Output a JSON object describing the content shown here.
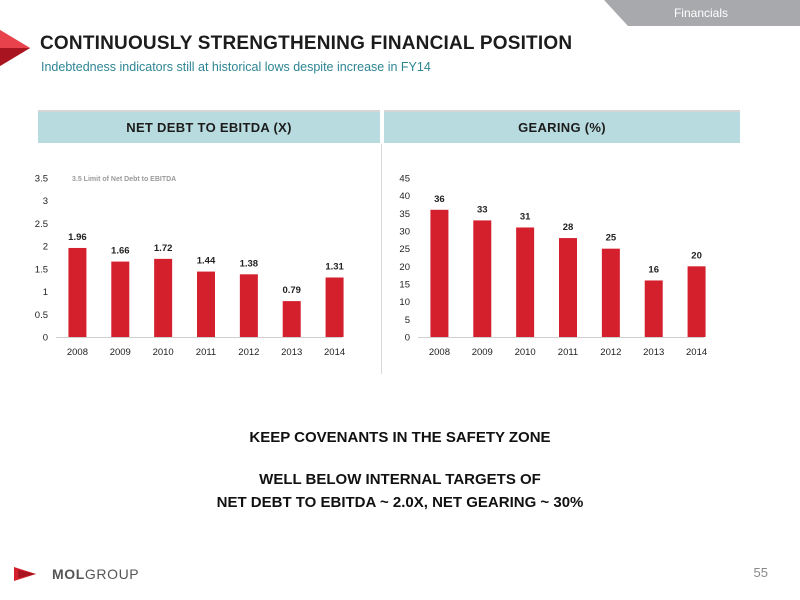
{
  "header": {
    "section_tab": "Financials",
    "title": "CONTINUOUSLY STRENGTHENING FINANCIAL POSITION",
    "subtitle": "Indebtedness indicators still at historical lows despite increase in FY14"
  },
  "colors": {
    "bar": "#d4202d",
    "panel_header": "#b8dbdf",
    "subtitle": "#2d8593",
    "brand_red": "#d4202d"
  },
  "chart_data": [
    {
      "type": "bar",
      "title": "NET DEBT TO EBITDA (X)",
      "categories": [
        "2008",
        "2009",
        "2010",
        "2011",
        "2012",
        "2013",
        "2014"
      ],
      "values": [
        1.96,
        1.66,
        1.72,
        1.44,
        1.38,
        0.79,
        1.31
      ],
      "value_labels": [
        "1.96",
        "1.66",
        "1.72",
        "1.44",
        "1.38",
        "0.79",
        "1.31"
      ],
      "ylim": [
        0,
        3.5
      ],
      "yticks": [
        0,
        0.5,
        1,
        1.5,
        2,
        2.5,
        3,
        3.5
      ],
      "ytick_labels": [
        "0",
        "0.5",
        "1",
        "1.5",
        "2",
        "2.5",
        "3",
        "3.5"
      ],
      "annotation": "3.5 Limit of Net Debt to EBITDA",
      "grid": false,
      "legend": "none"
    },
    {
      "type": "bar",
      "title": "GEARING (%)",
      "categories": [
        "2008",
        "2009",
        "2010",
        "2011",
        "2012",
        "2013",
        "2014"
      ],
      "values": [
        36,
        33,
        31,
        28,
        25,
        16,
        20
      ],
      "value_labels": [
        "36",
        "33",
        "31",
        "28",
        "25",
        "16",
        "20"
      ],
      "ylim": [
        0,
        45
      ],
      "yticks": [
        0,
        5,
        10,
        15,
        20,
        25,
        30,
        35,
        40,
        45
      ],
      "ytick_labels": [
        "0",
        "5",
        "10",
        "15",
        "20",
        "25",
        "30",
        "35",
        "40",
        "45"
      ],
      "grid": false,
      "legend": "none"
    }
  ],
  "messages": {
    "line1": "KEEP COVENANTS IN THE SAFETY ZONE",
    "line2": "WELL BELOW INTERNAL TARGETS OF",
    "line3": "NET DEBT TO EBITDA ~ 2.0X,  NET GEARING ~ 30%"
  },
  "footer": {
    "logo_mol": "MOL",
    "logo_group": "GROUP",
    "page_number": "55"
  }
}
